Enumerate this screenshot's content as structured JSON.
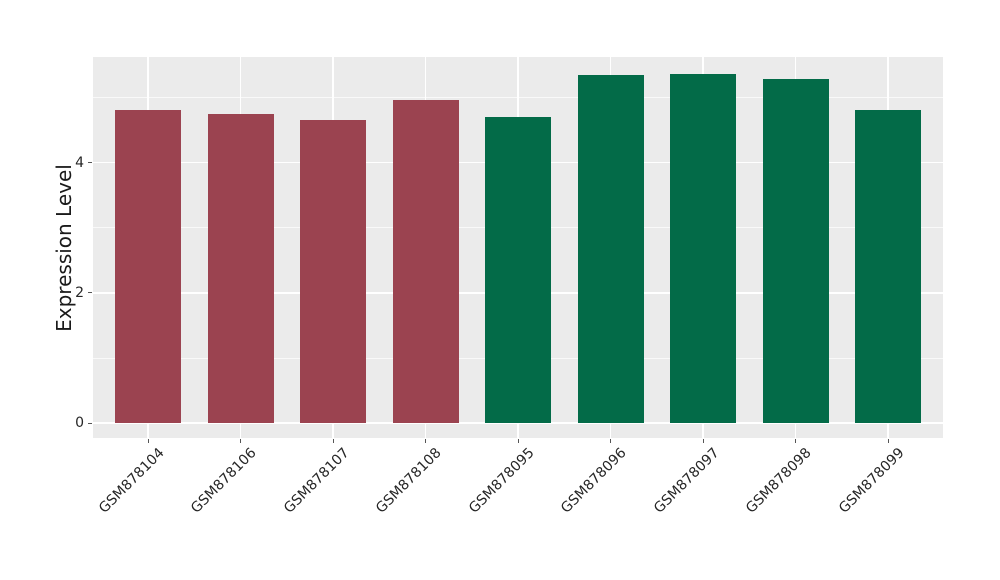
{
  "chart_data": {
    "type": "bar",
    "title": "",
    "xlabel": "",
    "ylabel": "Expression Level",
    "categories": [
      "GSM878104",
      "GSM878106",
      "GSM878107",
      "GSM878108",
      "GSM878095",
      "GSM878096",
      "GSM878097",
      "GSM878098",
      "GSM878099"
    ],
    "values": [
      4.81,
      4.75,
      4.65,
      4.96,
      4.7,
      5.35,
      5.36,
      5.28,
      4.81
    ],
    "bar_colors": [
      "#9B4350",
      "#9B4350",
      "#9B4350",
      "#9B4350",
      "#036B48",
      "#036B48",
      "#036B48",
      "#036B48",
      "#036B48"
    ],
    "group_colors": {
      "left_group": "#9B4350",
      "right_group": "#036B48"
    },
    "yticks": [
      0,
      2,
      4
    ],
    "yticks_minor": [
      1,
      3,
      5
    ],
    "ylim": [
      -0.22,
      5.62
    ],
    "grid": "on",
    "legend": "none",
    "panel_background": "#EBEBEB",
    "grid_color": "#FFFFFF",
    "figure_background": "#FFFFFF",
    "tick_label_color": "#262626",
    "x_tick_label_rotation_deg": 45
  }
}
